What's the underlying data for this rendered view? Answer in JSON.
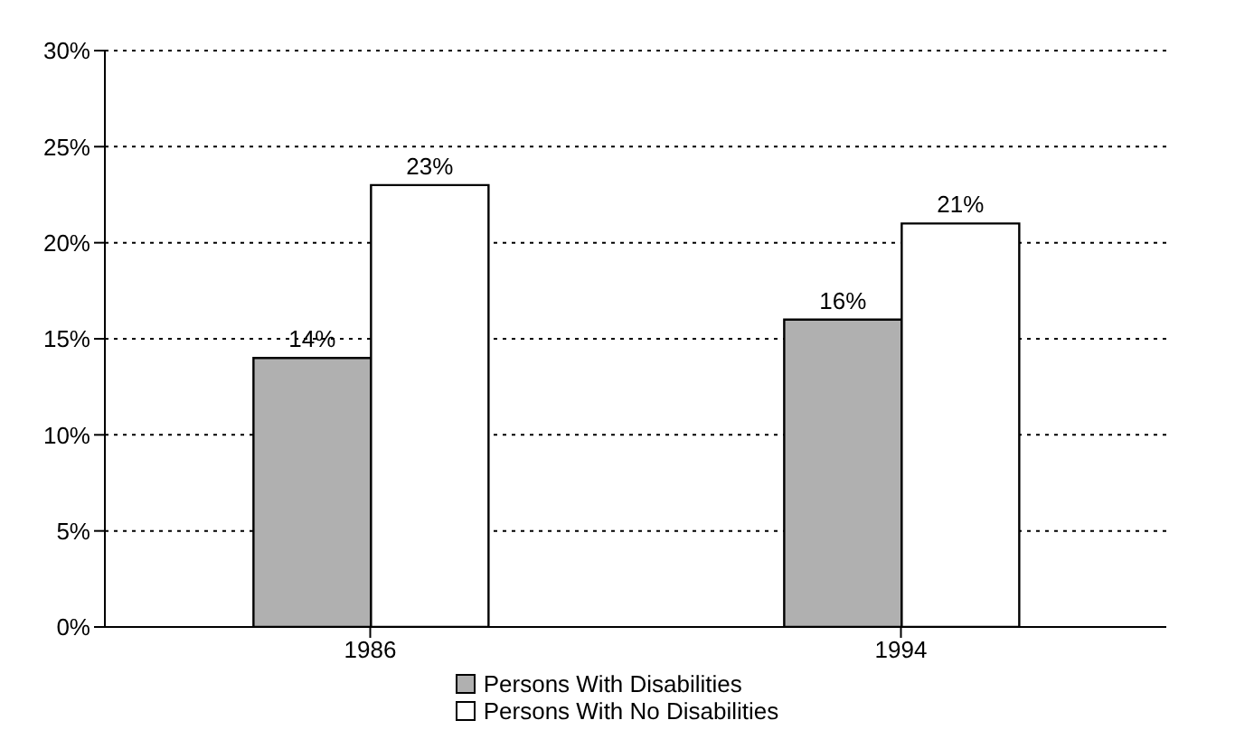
{
  "chart_data": {
    "type": "bar",
    "categories": [
      "1986",
      "1994"
    ],
    "series": [
      {
        "name": "Persons With Disabilities",
        "color": "#b0b0b0",
        "values": [
          14,
          16
        ],
        "value_labels": [
          "14%",
          "16%"
        ]
      },
      {
        "name": "Persons With No Disabilities",
        "color": "#ffffff",
        "values": [
          23,
          21
        ],
        "value_labels": [
          "23%",
          "21%"
        ]
      }
    ],
    "ylim": [
      0,
      30
    ],
    "yticks": [
      {
        "value": 0,
        "label": "0%"
      },
      {
        "value": 5,
        "label": "5%"
      },
      {
        "value": 10,
        "label": "10%"
      },
      {
        "value": 15,
        "label": "15%"
      },
      {
        "value": 20,
        "label": "20%"
      },
      {
        "value": 25,
        "label": "25%"
      },
      {
        "value": 30,
        "label": "30%"
      }
    ],
    "grid": "y",
    "legend": "bottom"
  }
}
